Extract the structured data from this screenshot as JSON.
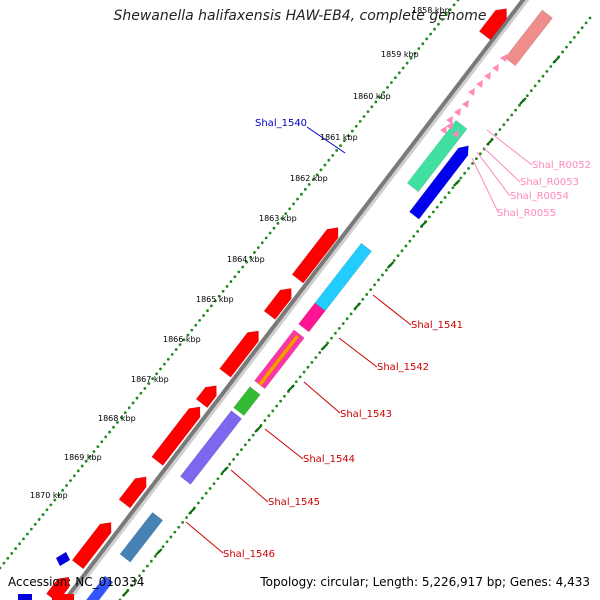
{
  "title": "Shewanella halifaxensis HAW-EB4, complete genome",
  "footer": {
    "accession": "Accession: NC_010334",
    "topology": "Topology: circular; Length: 5,226,917 bp; Genes: 4,433"
  },
  "colors": {
    "backbone": "#7a7a7a",
    "tick_dots": "#1f8a1f",
    "tick_major": "#0f6e0f",
    "forward_cds": "#ff0000",
    "label_cds": "#cc0000",
    "label_blue": "#0000cc",
    "label_rna": "#ff88bb"
  },
  "scale_labels": [
    "1858 kbp",
    "1859 kbp",
    "1860 kbp",
    "1861 kbp",
    "1862 kbp",
    "1863 kbp",
    "1864 kbp",
    "1865 kbp",
    "1866 kbp",
    "1867 kbp",
    "1868 kbp",
    "1869 kbp",
    "1870 kbp"
  ],
  "gene_labels": [
    {
      "id": "Shal_1540",
      "color": "#0000cc"
    },
    {
      "id": "Shal_R0052",
      "color": "#ff88bb"
    },
    {
      "id": "Shal_R0053",
      "color": "#ff88bb"
    },
    {
      "id": "Shal_R0054",
      "color": "#ff88bb"
    },
    {
      "id": "Shal_R0055",
      "color": "#ff88bb"
    },
    {
      "id": "Shal_1541",
      "color": "#cc0000"
    },
    {
      "id": "Shal_1542",
      "color": "#cc0000"
    },
    {
      "id": "Shal_1543",
      "color": "#cc0000"
    },
    {
      "id": "Shal_1544",
      "color": "#cc0000"
    },
    {
      "id": "Shal_1545",
      "color": "#cc0000"
    },
    {
      "id": "Shal_1546",
      "color": "#cc0000"
    }
  ]
}
